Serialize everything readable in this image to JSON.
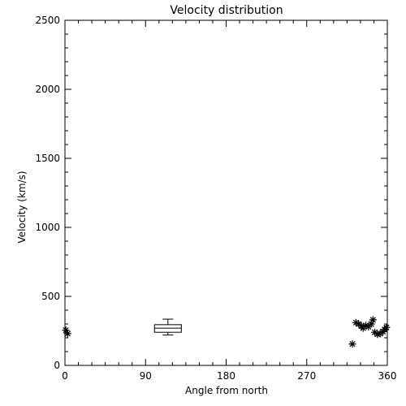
{
  "chart_data": {
    "type": "scatter",
    "title": "Velocity distribution",
    "xlabel": "Angle from north",
    "ylabel": "Velocity (km/s)",
    "xlim": [
      0,
      360
    ],
    "ylim": [
      0,
      2500
    ],
    "xticks": [
      0,
      90,
      180,
      270,
      360
    ],
    "yticks": [
      0,
      500,
      1000,
      1500,
      2000,
      2500
    ],
    "grid": false,
    "legend": "none",
    "points": [
      {
        "x": 1,
        "y": 255
      },
      {
        "x": 3,
        "y": 230
      },
      {
        "x": 321,
        "y": 155
      },
      {
        "x": 325,
        "y": 310
      },
      {
        "x": 328,
        "y": 300
      },
      {
        "x": 331,
        "y": 285
      },
      {
        "x": 333,
        "y": 270
      },
      {
        "x": 336,
        "y": 290
      },
      {
        "x": 339,
        "y": 280
      },
      {
        "x": 342,
        "y": 300
      },
      {
        "x": 344,
        "y": 330
      },
      {
        "x": 346,
        "y": 240
      },
      {
        "x": 349,
        "y": 225
      },
      {
        "x": 352,
        "y": 230
      },
      {
        "x": 355,
        "y": 245
      },
      {
        "x": 357,
        "y": 260
      },
      {
        "x": 359,
        "y": 275
      }
    ],
    "boxplot": {
      "x_center": 115,
      "x_halfwidth": 15,
      "whisker_low": 220,
      "q1": 240,
      "median": 270,
      "q3": 295,
      "whisker_high": 335
    }
  }
}
